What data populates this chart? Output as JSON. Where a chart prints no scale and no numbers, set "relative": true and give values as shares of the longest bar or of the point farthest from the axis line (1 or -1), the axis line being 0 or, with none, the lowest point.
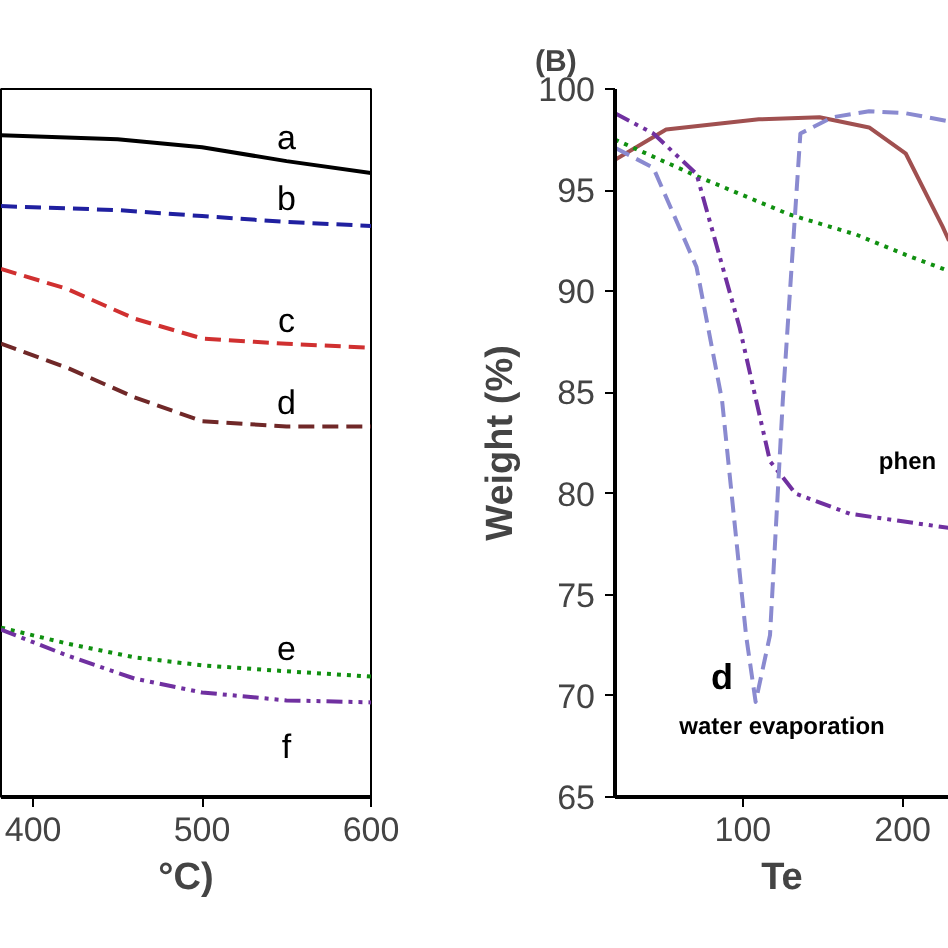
{
  "chart_data": [
    {
      "type": "line",
      "xlabel": "°C)",
      "relative": true,
      "x": [
        381,
        420,
        460,
        500,
        550,
        600
      ],
      "xlim": [
        381,
        600
      ],
      "xticks": [
        400,
        500,
        600
      ],
      "grid": false,
      "legend": false,
      "series": [
        {
          "name": "a",
          "color": "#000000",
          "line_style": "solid",
          "x": [
            381,
            450,
            500,
            550,
            600
          ],
          "values": [
            1.0,
            0.994,
            0.982,
            0.961,
            0.943
          ]
        },
        {
          "name": "b",
          "color": "#2020a0",
          "line_style": "dashed",
          "x": [
            381,
            450,
            500,
            550,
            600
          ],
          "values": [
            0.893,
            0.887,
            0.878,
            0.869,
            0.863
          ]
        },
        {
          "name": "c",
          "color": "#d03030",
          "line_style": "dashed",
          "values": [
            0.798,
            0.768,
            0.723,
            0.693,
            0.685,
            0.679
          ]
        },
        {
          "name": "d",
          "color": "#702828",
          "line_style": "dashed",
          "values": [
            0.685,
            0.649,
            0.604,
            0.568,
            0.56,
            0.56
          ]
        },
        {
          "name": "e",
          "color": "#109010",
          "line_style": "dotted",
          "values": [
            0.256,
            0.232,
            0.211,
            0.199,
            0.19,
            0.182
          ]
        },
        {
          "name": "f",
          "color": "#7030a0",
          "line_style": "dashdot",
          "values": [
            0.253,
            0.214,
            0.179,
            0.158,
            0.146,
            0.143
          ]
        }
      ]
    },
    {
      "type": "line",
      "title": "(B)",
      "xlabel": "Te",
      "ylabel": "Weight (%)",
      "xlim": [
        20,
        229
      ],
      "xticks": [
        100,
        200
      ],
      "ylim": [
        65,
        100
      ],
      "yticks": [
        65,
        70,
        75,
        80,
        85,
        90,
        95,
        100
      ],
      "grid": false,
      "legend": false,
      "annotations": [
        "d",
        "water evaporation",
        "phen"
      ],
      "series": [
        {
          "color": "#a05050",
          "line_style": "solid",
          "x": [
            20,
            52,
            110,
            148,
            179,
            202,
            225,
            229
          ],
          "values": [
            96.5,
            98.0,
            98.5,
            98.6,
            98.1,
            96.8,
            93.2,
            92.5
          ]
        },
        {
          "color": "#109010",
          "line_style": "dotted",
          "x": [
            20,
            71,
            129,
            171,
            202,
            229
          ],
          "values": [
            97.5,
            95.7,
            93.8,
            92.8,
            91.8,
            91.0
          ]
        },
        {
          "color": "#7030a0",
          "line_style": "dashdot",
          "x": [
            20,
            44,
            71,
            98,
            117,
            133,
            167,
            229
          ],
          "values": [
            98.8,
            97.8,
            95.8,
            88.2,
            81.6,
            80.0,
            79.0,
            78.3
          ]
        },
        {
          "color": "#8a8ad0",
          "line_style": "dashed",
          "x": [
            20,
            44,
            71,
            87,
            102,
            108,
            117,
            125,
            136,
            156,
            179,
            202,
            229
          ],
          "values": [
            97.1,
            96.1,
            91.2,
            84.6,
            73.0,
            69.7,
            73.0,
            84.6,
            97.8,
            98.6,
            98.9,
            98.8,
            98.4
          ]
        }
      ]
    }
  ]
}
